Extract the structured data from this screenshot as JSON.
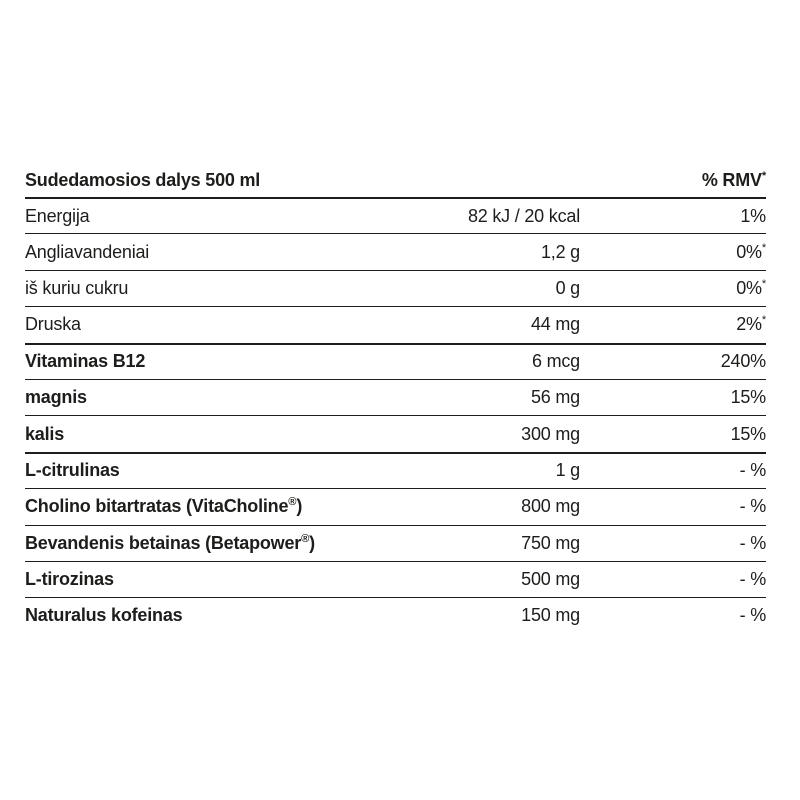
{
  "table": {
    "header": {
      "title": "Sudedamosios dalys 500 ml",
      "rmv_label": "% RMV",
      "rmv_sup": "*"
    },
    "rows": [
      {
        "name": "Energija",
        "name_sup": "",
        "name_after": "",
        "value": "82 kJ / 20 kcal",
        "rmv": "1%",
        "rmv_sup": "",
        "bold": false,
        "separator": "thick"
      },
      {
        "name": "Angliavandeniai",
        "name_sup": "",
        "name_after": "",
        "value": "1,2 g",
        "rmv": "0%",
        "rmv_sup": "*",
        "bold": false,
        "separator": "thin"
      },
      {
        "name": "iš kuriu cukru",
        "name_sup": "",
        "name_after": "",
        "value": "0 g",
        "rmv": "0%",
        "rmv_sup": "*",
        "bold": false,
        "separator": "thin"
      },
      {
        "name": "Druska",
        "name_sup": "",
        "name_after": "",
        "value": "44 mg",
        "rmv": "2%",
        "rmv_sup": "*",
        "bold": false,
        "separator": "thin"
      },
      {
        "name": "Vitaminas B12",
        "name_sup": "",
        "name_after": "",
        "value": "6 mcg",
        "rmv": "240%",
        "rmv_sup": "",
        "bold": true,
        "separator": "thick"
      },
      {
        "name": "magnis",
        "name_sup": "",
        "name_after": "",
        "value": "56 mg",
        "rmv": "15%",
        "rmv_sup": "",
        "bold": true,
        "separator": "thin"
      },
      {
        "name": "kalis",
        "name_sup": "",
        "name_after": "",
        "value": "300 mg",
        "rmv": "15%",
        "rmv_sup": "",
        "bold": true,
        "separator": "thin"
      },
      {
        "name": "L-citrulinas",
        "name_sup": "",
        "name_after": "",
        "value": "1 g",
        "rmv": "- %",
        "rmv_sup": "",
        "bold": true,
        "separator": "thick"
      },
      {
        "name": "Cholino bitartratas (VitaCholine",
        "name_sup": "®",
        "name_after": ")",
        "value": "800 mg",
        "rmv": "- %",
        "rmv_sup": "",
        "bold": true,
        "separator": "thin"
      },
      {
        "name": "Bevandenis betainas (Betapower",
        "name_sup": "®",
        "name_after": ")",
        "value": "750 mg",
        "rmv": "- %",
        "rmv_sup": "",
        "bold": true,
        "separator": "thin"
      },
      {
        "name": "L-tirozinas",
        "name_sup": "",
        "name_after": "",
        "value": "500 mg",
        "rmv": "- %",
        "rmv_sup": "",
        "bold": true,
        "separator": "thin"
      },
      {
        "name": "Naturalus kofeinas",
        "name_sup": "",
        "name_after": "",
        "value": "150 mg",
        "rmv": "- %",
        "rmv_sup": "",
        "bold": true,
        "separator": "thin"
      }
    ]
  }
}
